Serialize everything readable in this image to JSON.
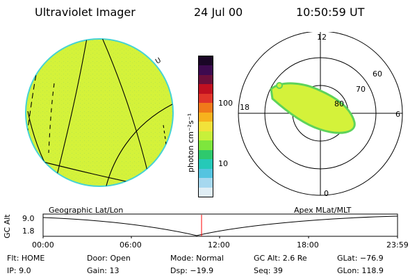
{
  "header": {
    "instrument": "Ultraviolet Imager",
    "date": "24 Jul 00",
    "time": "10:50:59 UT"
  },
  "colorbar": {
    "unit_label": "photon cm⁻²s⁻¹",
    "ticks": [
      "100",
      "10"
    ],
    "colors": [
      "#1a0626",
      "#3d0a4f",
      "#6b0f3a",
      "#c01020",
      "#e0352a",
      "#f07a1a",
      "#f7b21d",
      "#f2e23a",
      "#c8f03a",
      "#7ee63d",
      "#2ec96d",
      "#25c9b8",
      "#54c4e0",
      "#a6d8ef",
      "#e0eef5"
    ]
  },
  "globe": {
    "disk_color": "#d4f23a",
    "limb_color": "#46d3d3",
    "marker_label": "U"
  },
  "polar_plot": {
    "noon_label": "12",
    "midnight_label": "0",
    "dusk_label": "18",
    "dawn_label": "6",
    "lat_labels": [
      "60",
      "70",
      "80"
    ],
    "aurora_color": "#d4f23a",
    "aurora_edge_color": "#5ed35a"
  },
  "timeline": {
    "left_title": "Geographic Lat/Lon",
    "right_title": "Apex MLat/MLT",
    "axis_label": "GC Alt",
    "y_ticks": [
      "9.0",
      "1.8"
    ],
    "x_ticks": [
      "00:00",
      "06:00",
      "12:00",
      "18:00",
      "23:59"
    ],
    "current_marker_color": "#ff0000"
  },
  "status": {
    "flt": "Flt: HOME",
    "ip": "IP: 9.0",
    "door": "Door: Open",
    "gain": "Gain: 13",
    "mode": "Mode: Normal",
    "dsp": "Dsp: −19.9",
    "gc_alt": "GC Alt: 2.6 Re",
    "seq": "Seq: 39",
    "glat": "GLat: −76.9",
    "glon": "GLon: 118.9"
  }
}
